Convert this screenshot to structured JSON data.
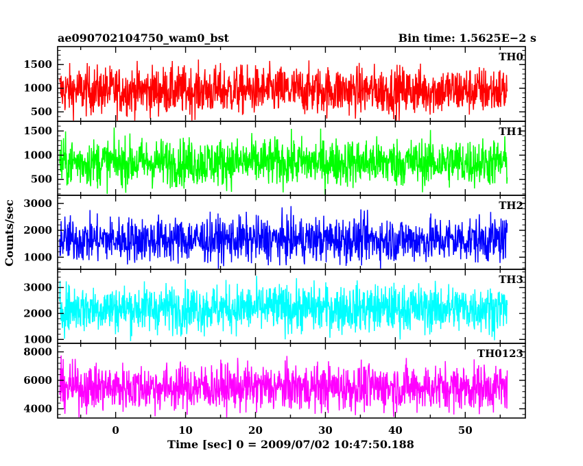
{
  "header": {
    "title": "ae090702104750_wam0_bst",
    "bin_time": "Bin time: 1.5625E−2 s"
  },
  "chart_data": {
    "type": "line",
    "title": "ae090702104750_wam0_bst",
    "subtitle": "Bin time: 1.5625E−2 s",
    "xlabel": "Time [sec] 0 = 2009/07/02 10:47:50.188",
    "ylabel": "Counts/sec",
    "xlim": [
      -8.3,
      58.6
    ],
    "xticks": [
      0,
      10,
      20,
      30,
      40,
      50
    ],
    "data_x_range": [
      -8,
      56
    ],
    "bin_time_s": 0.015625,
    "grid": false,
    "legend": "none",
    "panels": [
      {
        "name": "TH0",
        "color": "#ff0000",
        "ylim": [
          300,
          1880
        ],
        "yticks": [
          500,
          1000,
          1500
        ],
        "approx_mean": 950,
        "approx_range": [
          300,
          1880
        ]
      },
      {
        "name": "TH1",
        "color": "#00ff00",
        "ylim": [
          170,
          1700
        ],
        "yticks": [
          500,
          1000,
          1500
        ],
        "approx_mean": 850,
        "approx_range": [
          170,
          1700
        ]
      },
      {
        "name": "TH2",
        "color": "#0000ff",
        "ylim": [
          550,
          3300
        ],
        "yticks": [
          1000,
          2000,
          3000
        ],
        "approx_mean": 1650,
        "approx_range": [
          600,
          3200
        ]
      },
      {
        "name": "TH3",
        "color": "#00ffff",
        "ylim": [
          850,
          3700
        ],
        "yticks": [
          1000,
          2000,
          3000
        ],
        "approx_mean": 2200,
        "approx_range": [
          850,
          3700
        ]
      },
      {
        "name": "TH0123",
        "color": "#ff00ff",
        "ylim": [
          3350,
          8600
        ],
        "yticks": [
          4000,
          6000,
          8000
        ],
        "approx_mean": 5500,
        "approx_range": [
          3400,
          8500
        ]
      }
    ]
  }
}
